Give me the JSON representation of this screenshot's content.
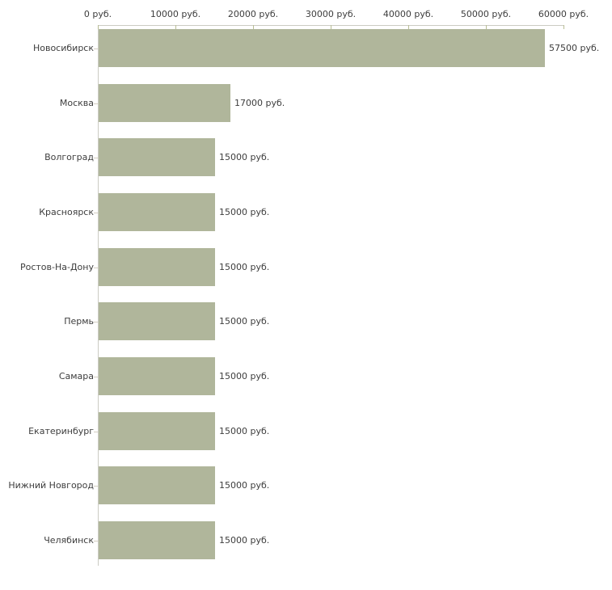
{
  "chart_data": {
    "type": "bar",
    "orientation": "horizontal",
    "title": "",
    "unit": "руб.",
    "categories": [
      "Новосибирск",
      "Москва",
      "Волгоград",
      "Красноярск",
      "Ростов-На-Дону",
      "Пермь",
      "Самара",
      "Екатеринбург",
      "Нижний Новгород",
      "Челябинск"
    ],
    "values": [
      57500,
      17000,
      15000,
      15000,
      15000,
      15000,
      15000,
      15000,
      15000,
      15000
    ],
    "value_labels": [
      "57500 руб.",
      "17000 руб.",
      "15000 руб.",
      "15000 руб.",
      "15000 руб.",
      "15000 руб.",
      "15000 руб.",
      "15000 руб.",
      "15000 руб.",
      "15000 руб."
    ],
    "x_axis": {
      "position": "top",
      "range": [
        0,
        60000
      ],
      "ticks": [
        0,
        10000,
        20000,
        30000,
        40000,
        50000,
        60000
      ],
      "tick_labels": [
        "0 руб.",
        "10000 руб.",
        "20000 руб.",
        "30000 руб.",
        "40000 руб.",
        "50000 руб.",
        "60000 руб."
      ]
    },
    "grid": false,
    "legend": false,
    "colors": {
      "bar": "#b0b69b",
      "axis_line": "#cbcbc3",
      "x_tick": "#b8bd94",
      "y_tick": "#d4cec2",
      "text": "#3d3d3d",
      "background": "#ffffff"
    }
  }
}
